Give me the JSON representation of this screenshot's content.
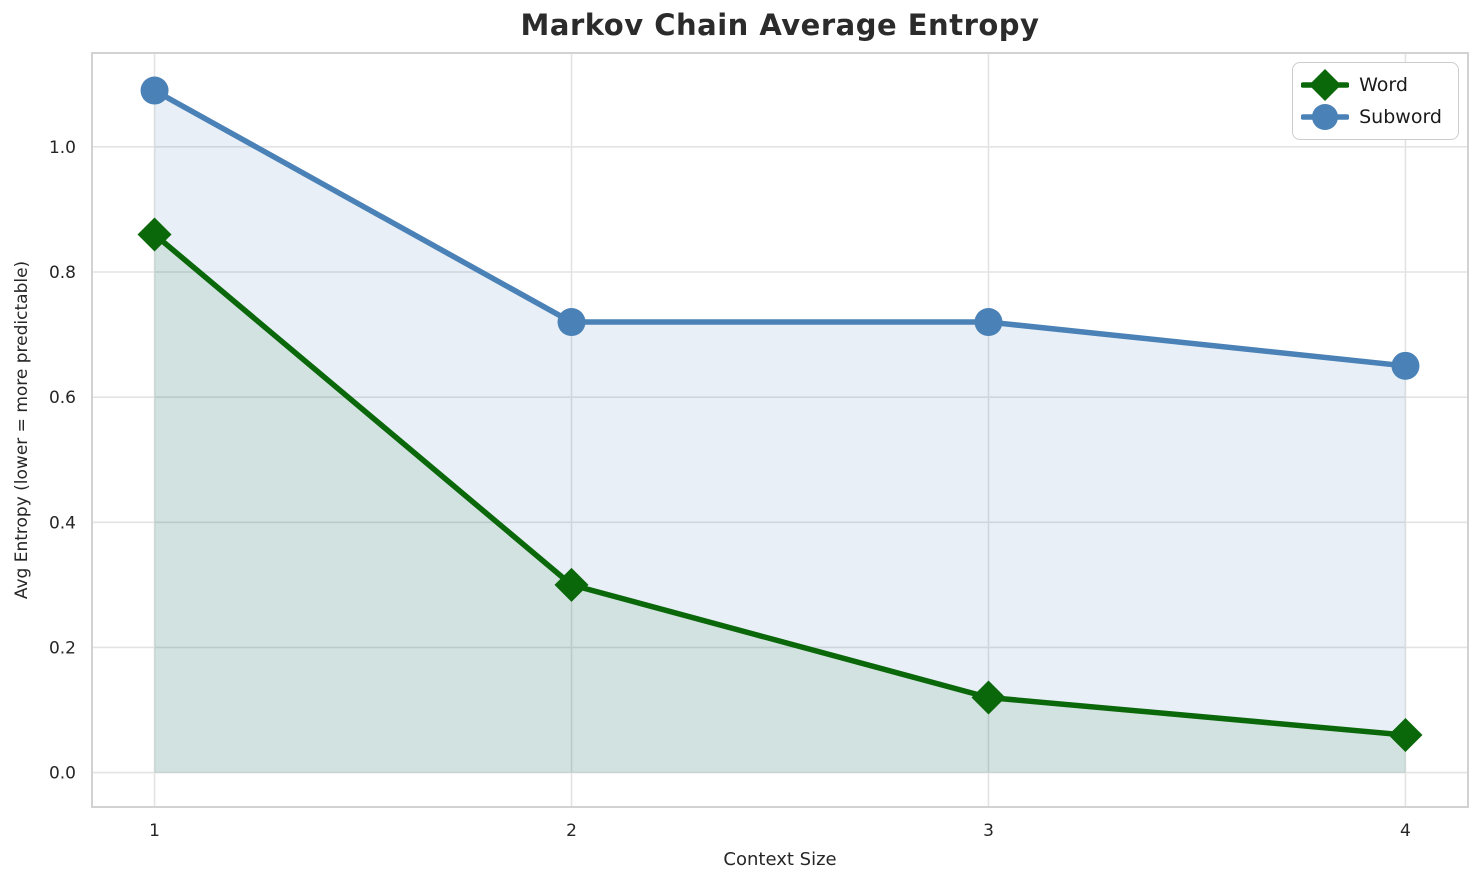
{
  "chart_data": {
    "type": "line",
    "title": "Markov Chain Average Entropy",
    "xlabel": "Context Size",
    "ylabel": "Avg Entropy (lower = more predictable)",
    "x": [
      1,
      2,
      3,
      4
    ],
    "series": [
      {
        "name": "Word",
        "values": [
          0.86,
          0.3,
          0.12,
          0.06
        ],
        "color": "#0a680a",
        "marker": "diamond",
        "fill_opacity": 0.1
      },
      {
        "name": "Subword",
        "values": [
          1.09,
          0.72,
          0.72,
          0.65
        ],
        "color": "#4a81b6",
        "marker": "circle",
        "fill_opacity": 0.13
      }
    ],
    "fill_baseline": 0,
    "xticks": [
      "1",
      "2",
      "3",
      "4"
    ],
    "xtick_values": [
      1,
      2,
      3,
      4
    ],
    "yticks": [
      "0.0",
      "0.2",
      "0.4",
      "0.6",
      "0.8",
      "1.0"
    ],
    "ytick_values": [
      0.0,
      0.2,
      0.4,
      0.6,
      0.8,
      1.0
    ],
    "xlim": [
      0.85,
      4.15
    ],
    "ylim": [
      -0.055,
      1.15
    ],
    "grid": true,
    "grid_color": "#e3e3e3",
    "spine_color": "#d2d2d2",
    "legend_position": "upper right"
  }
}
